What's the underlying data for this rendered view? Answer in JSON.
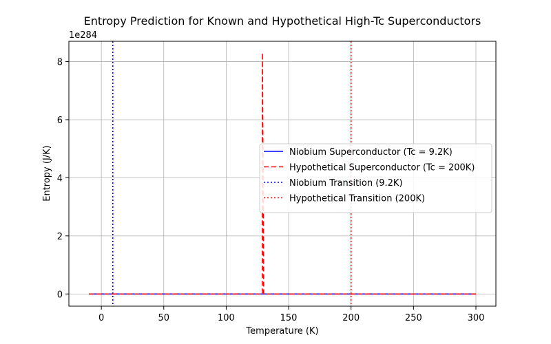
{
  "chart_data": {
    "type": "line",
    "title": "Entropy Prediction for Known and Hypothetical High-Tc Superconductors",
    "xlabel": "Temperature (K)",
    "ylabel": "Entropy (J/K)",
    "y_offset_label": "1e284",
    "xlim": [
      -26,
      316
    ],
    "ylim": [
      -0.42,
      8.7
    ],
    "x_ticks": [
      0,
      50,
      100,
      150,
      200,
      250,
      300
    ],
    "y_ticks": [
      0,
      2,
      4,
      6,
      8
    ],
    "grid": true,
    "legend_position": "center-right",
    "series": [
      {
        "name": "Niobium Superconductor (Tc = 9.2K)",
        "color": "#0000ff",
        "style": "solid",
        "points": [
          [
            -10,
            0
          ],
          [
            300,
            0
          ]
        ]
      },
      {
        "name": "Hypothetical Superconductor (Tc = 200K)",
        "color": "#ff0000",
        "style": "dashed",
        "points": [
          [
            -10,
            0
          ],
          [
            129,
            0
          ],
          [
            129,
            8.3
          ],
          [
            130,
            0
          ],
          [
            300,
            0
          ]
        ]
      }
    ],
    "vlines": [
      {
        "name": "Niobium Transition (9.2K)",
        "x": 9.2,
        "color": "#0000ff",
        "style": "dotted"
      },
      {
        "name": "Hypothetical Transition (200K)",
        "x": 200,
        "color": "#ff0000",
        "style": "dotted"
      }
    ]
  }
}
